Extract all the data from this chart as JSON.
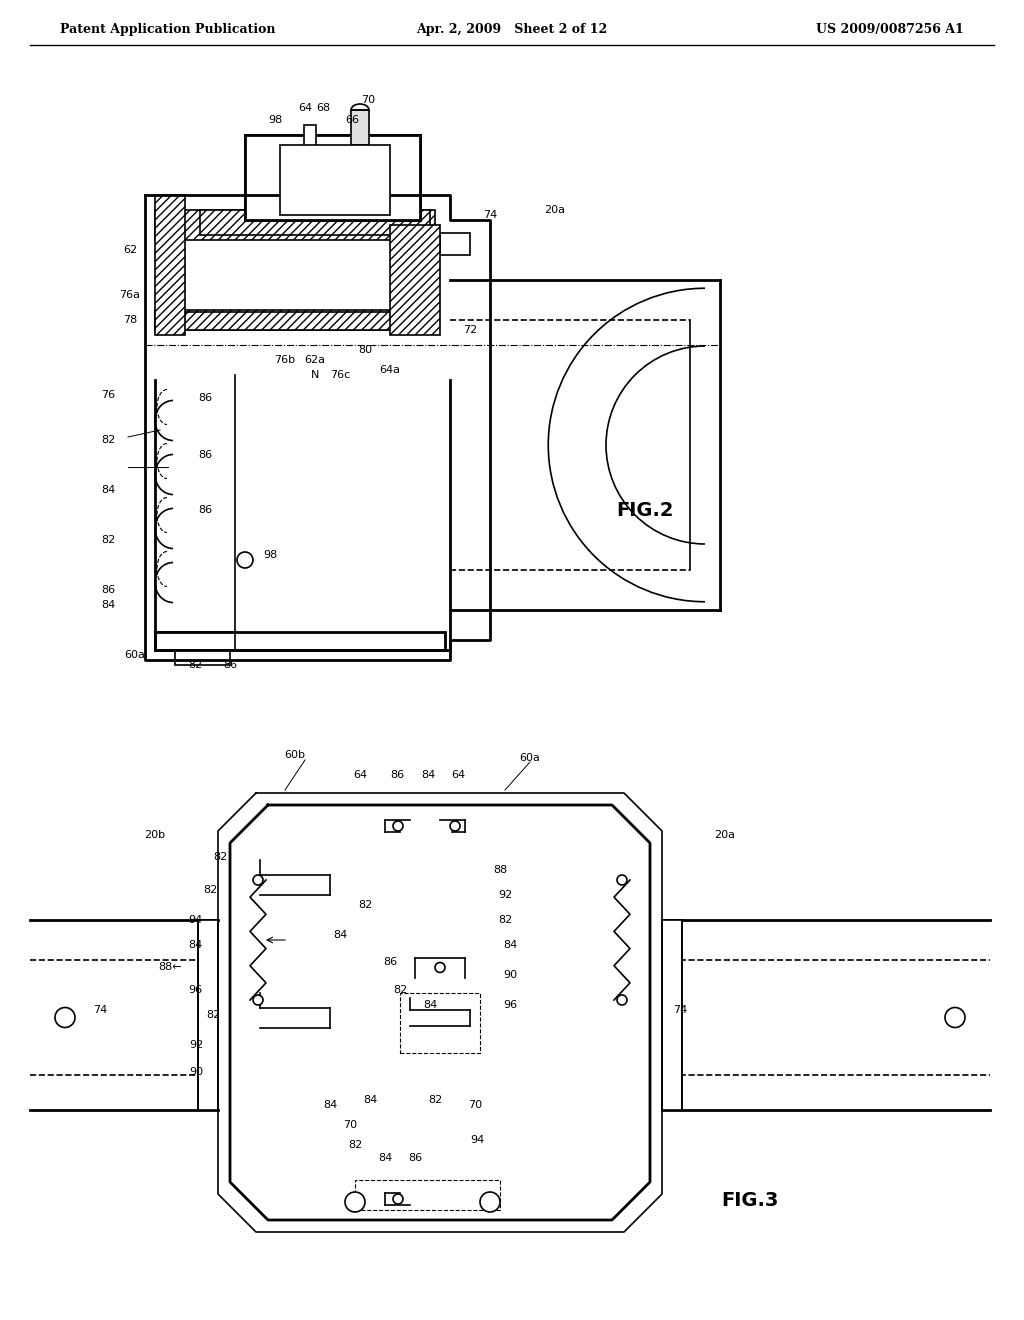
{
  "bg_color": "#ffffff",
  "line_color": "#000000",
  "hatch_color": "#000000",
  "header": {
    "left": "Patent Application Publication",
    "center": "Apr. 2, 2009   Sheet 2 of 12",
    "right": "US 2009/0087256 A1"
  },
  "fig2_label": "FIG.2",
  "fig3_label": "FIG.3"
}
